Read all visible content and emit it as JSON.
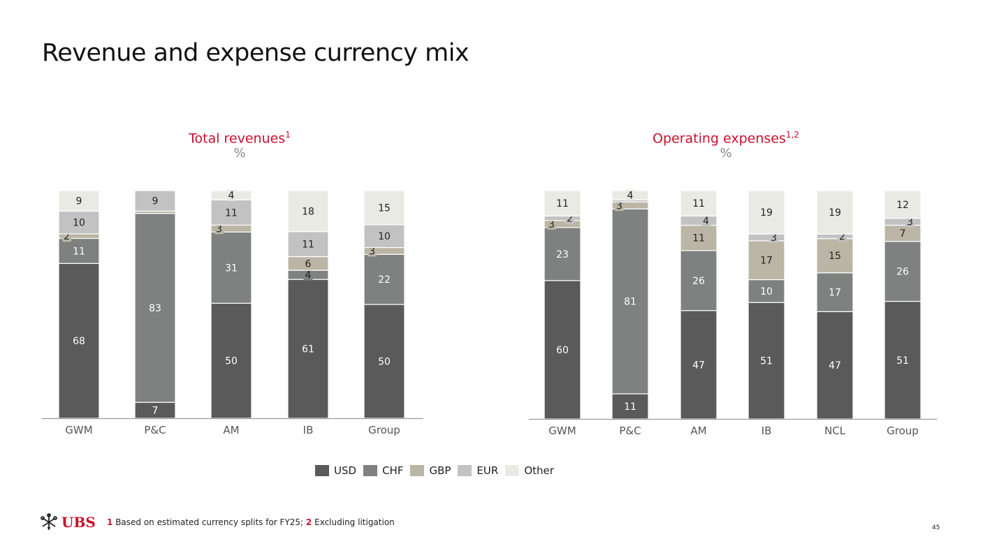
{
  "title": "Revenue and expense currency mix",
  "colors": {
    "USD": "#595a59",
    "CHF": "#7e817f",
    "GBP": "#bab5a5",
    "EUR": "#c2c2c3",
    "Other": "#eaeae5",
    "accent": "#c8102e",
    "axis": "#999999"
  },
  "legend": [
    {
      "key": "USD",
      "label": "USD"
    },
    {
      "key": "CHF",
      "label": "CHF"
    },
    {
      "key": "GBP",
      "label": "GBP"
    },
    {
      "key": "EUR",
      "label": "EUR"
    },
    {
      "key": "Other",
      "label": "Other"
    }
  ],
  "chart_data": [
    {
      "type": "bar",
      "stacked": true,
      "title": "Total revenues",
      "title_sup": "1",
      "unit": "%",
      "categories": [
        "GWM",
        "P&C",
        "AM",
        "IB",
        "Group"
      ],
      "series": [
        {
          "name": "USD",
          "values": [
            68,
            7,
            50,
            61,
            50
          ]
        },
        {
          "name": "CHF",
          "values": [
            11,
            83,
            31,
            4,
            22
          ]
        },
        {
          "name": "GBP",
          "values": [
            2,
            1,
            3,
            6,
            3
          ]
        },
        {
          "name": "EUR",
          "values": [
            10,
            9,
            11,
            11,
            10
          ]
        },
        {
          "name": "Other",
          "values": [
            9,
            0,
            4,
            18,
            15
          ]
        }
      ],
      "labels": [
        [
          "68",
          "11",
          "2",
          "10",
          "9"
        ],
        [
          "7",
          "83",
          "",
          "9",
          ""
        ],
        [
          "50",
          "31",
          "3",
          "11",
          "4"
        ],
        [
          "61",
          "4",
          "6",
          "11",
          "18"
        ],
        [
          "50",
          "22",
          "3",
          "10",
          "15"
        ]
      ],
      "ylim": [
        0,
        100
      ]
    },
    {
      "type": "bar",
      "stacked": true,
      "title": "Operating expenses",
      "title_sup": "1,2",
      "unit": "%",
      "categories": [
        "GWM",
        "P&C",
        "AM",
        "IB",
        "NCL",
        "Group"
      ],
      "series": [
        {
          "name": "USD",
          "values": [
            60,
            11,
            47,
            51,
            47,
            51
          ]
        },
        {
          "name": "CHF",
          "values": [
            23,
            81,
            26,
            10,
            17,
            26
          ]
        },
        {
          "name": "GBP",
          "values": [
            3,
            3,
            11,
            17,
            15,
            7
          ]
        },
        {
          "name": "EUR",
          "values": [
            2,
            1,
            4,
            3,
            2,
            3
          ]
        },
        {
          "name": "Other",
          "values": [
            11,
            4,
            11,
            19,
            19,
            12
          ]
        }
      ],
      "labels": [
        [
          "60",
          "23",
          "3",
          "2",
          "11"
        ],
        [
          "11",
          "81",
          "3",
          "",
          "4"
        ],
        [
          "47",
          "26",
          "11",
          "4",
          "11"
        ],
        [
          "51",
          "10",
          "17",
          "3",
          "19"
        ],
        [
          "47",
          "17",
          "15",
          "2",
          "19"
        ],
        [
          "51",
          "26",
          "7",
          "3",
          "12"
        ]
      ],
      "ylim": [
        0,
        100
      ]
    }
  ],
  "footnote": {
    "n1": "1",
    "t1": "Based on estimated currency splits for FY25; ",
    "n2": "2",
    "t2": "Excluding litigation"
  },
  "logo": "UBS",
  "page_number": "45"
}
